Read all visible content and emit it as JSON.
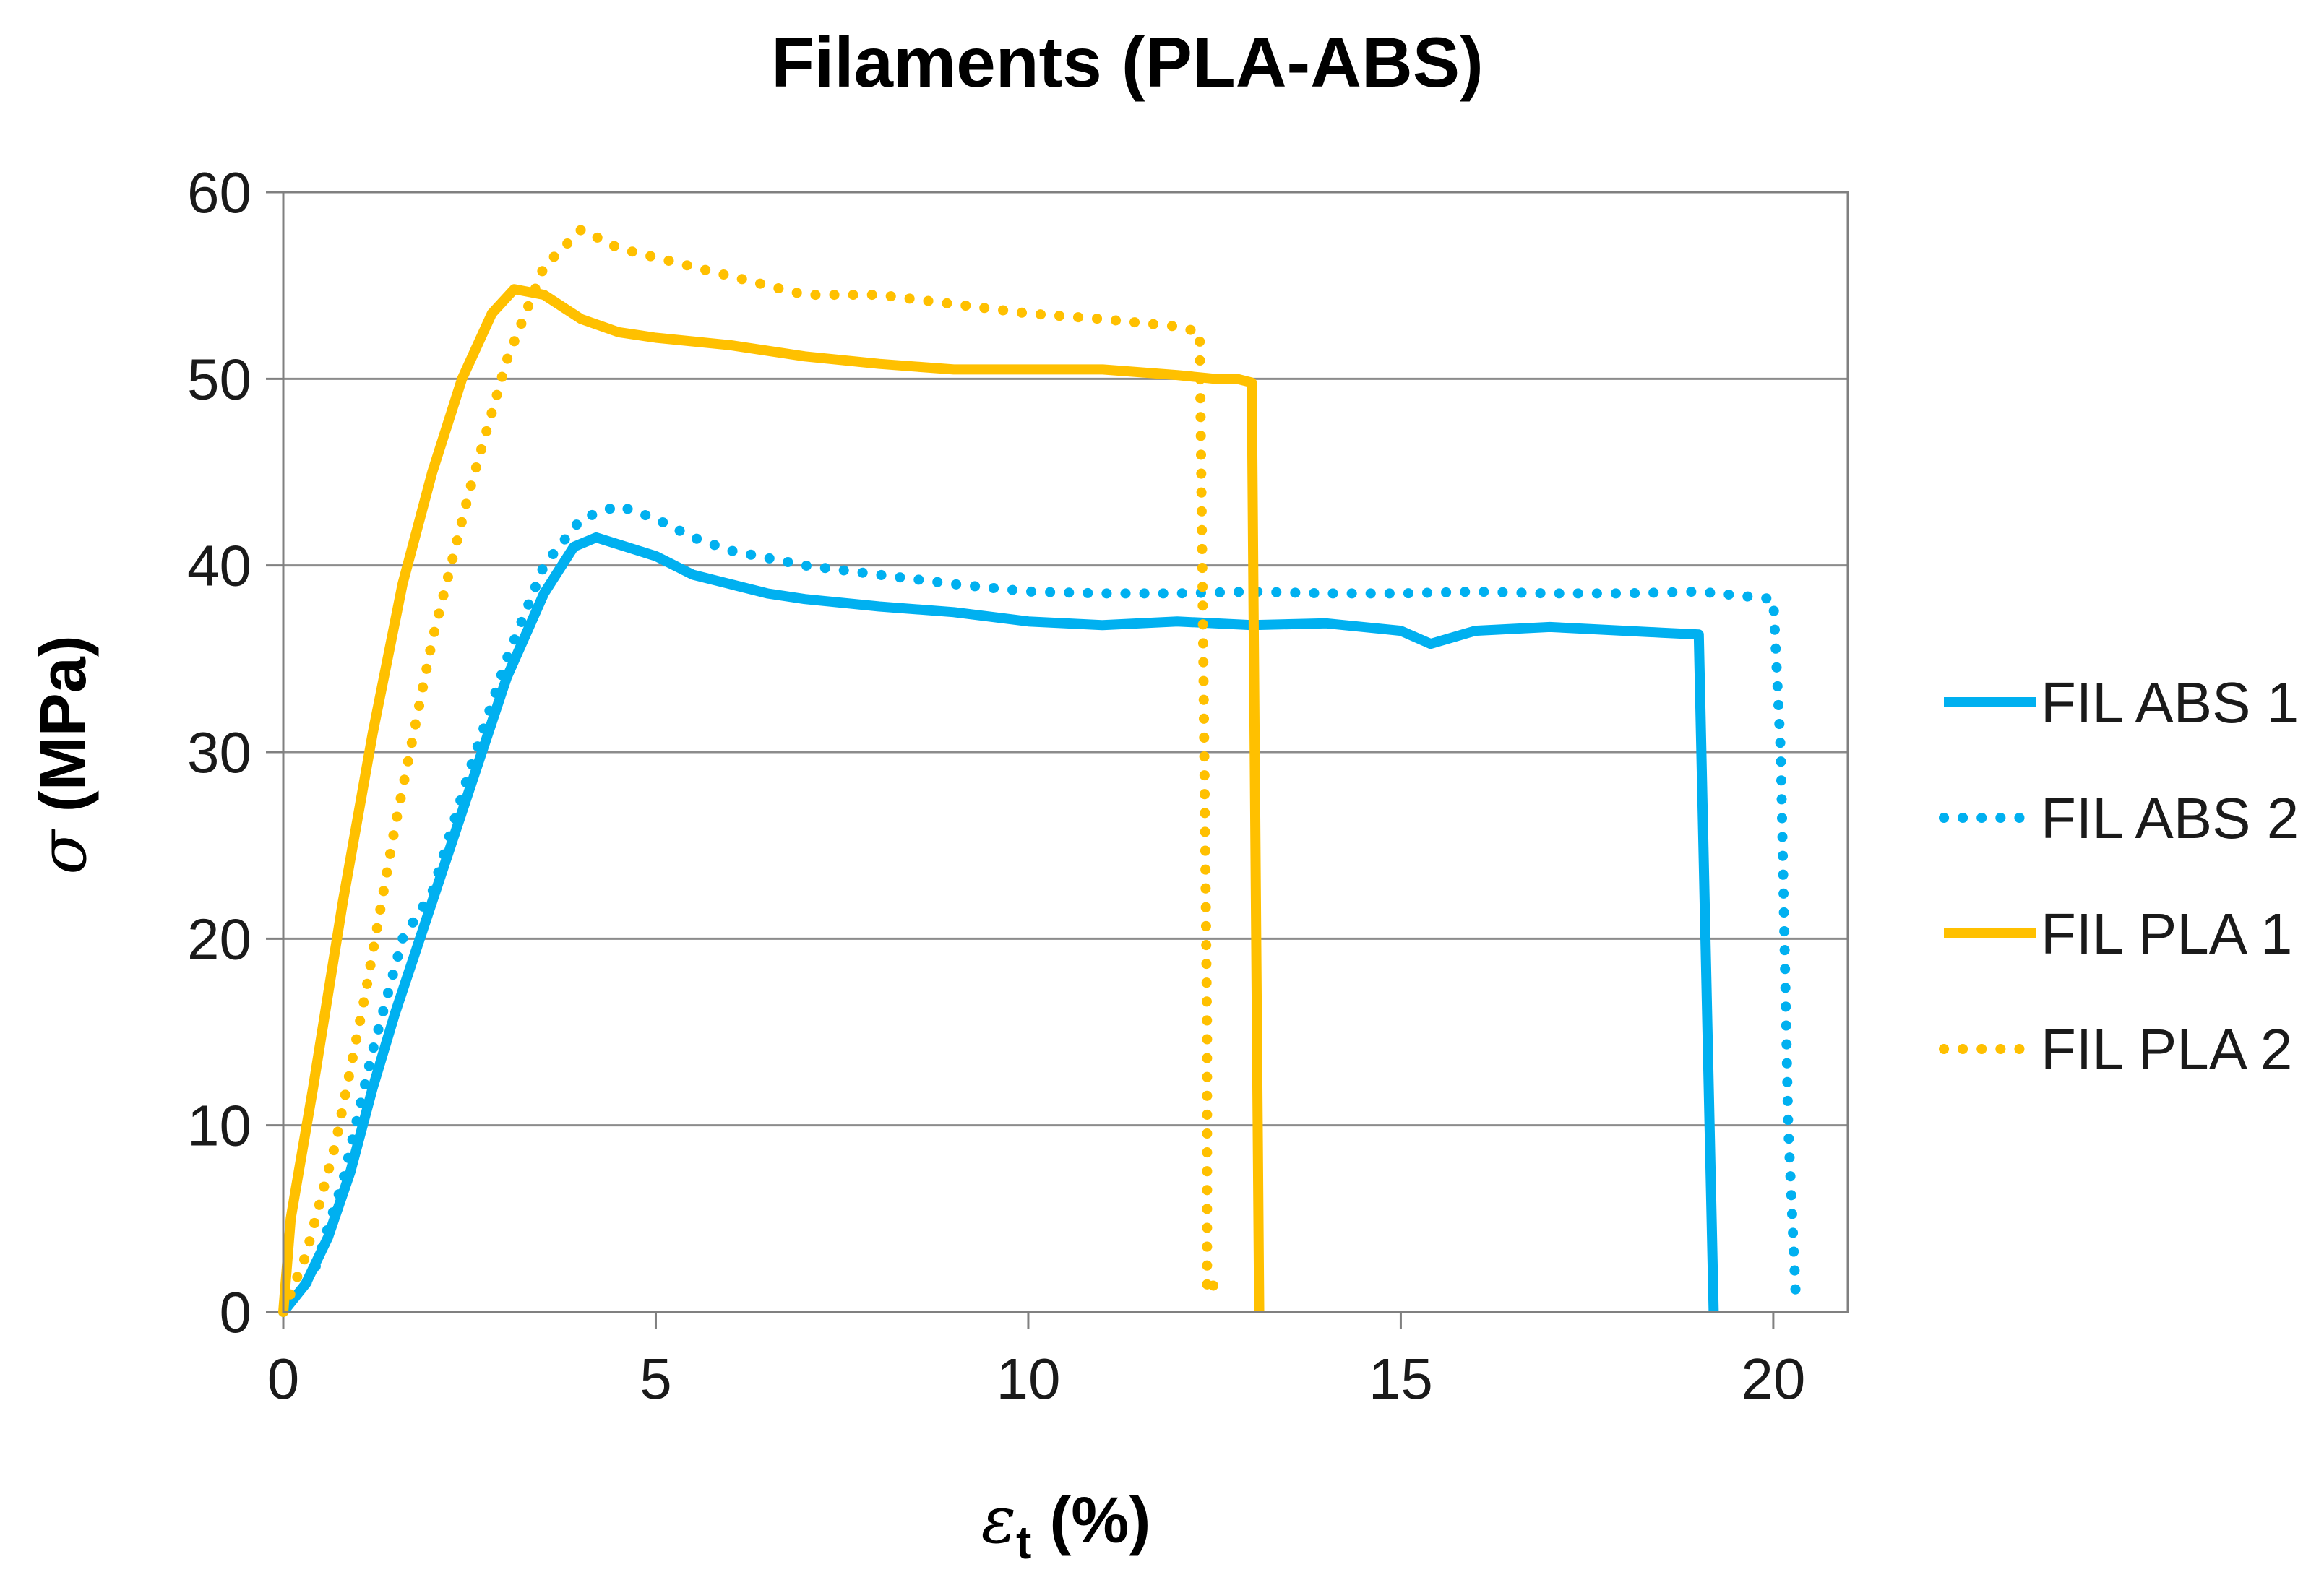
{
  "chart_data": {
    "type": "line",
    "title": "Filaments (PLA-ABS)",
    "xlabel": {
      "symbol": "ε",
      "subscript": "t",
      "unit": " (%)"
    },
    "ylabel": {
      "symbol": "σ",
      "unit": " (MPa)"
    },
    "xlim": [
      0,
      21
    ],
    "ylim": [
      0,
      60
    ],
    "xticks": [
      "0",
      "5",
      "10",
      "15",
      "20"
    ],
    "yticks": [
      "0",
      "10",
      "20",
      "30",
      "40",
      "50",
      "60"
    ],
    "grid": "horizontal",
    "legend_position": "right",
    "series": [
      {
        "name": "FIL ABS 1",
        "color": "#00B0F0",
        "dash": "solid",
        "points": [
          [
            0,
            0
          ],
          [
            0.3,
            1.5
          ],
          [
            0.6,
            4
          ],
          [
            0.9,
            7.5
          ],
          [
            1.2,
            12
          ],
          [
            1.5,
            16
          ],
          [
            2.0,
            22
          ],
          [
            2.5,
            28
          ],
          [
            3.0,
            34
          ],
          [
            3.5,
            38.5
          ],
          [
            3.9,
            41
          ],
          [
            4.2,
            41.5
          ],
          [
            4.6,
            41
          ],
          [
            5.0,
            40.5
          ],
          [
            5.5,
            39.5
          ],
          [
            6.0,
            39
          ],
          [
            6.5,
            38.5
          ],
          [
            7.0,
            38.2
          ],
          [
            8.0,
            37.8
          ],
          [
            9.0,
            37.5
          ],
          [
            10.0,
            37
          ],
          [
            11.0,
            36.8
          ],
          [
            12.0,
            37
          ],
          [
            13.0,
            36.8
          ],
          [
            14.0,
            36.9
          ],
          [
            15.0,
            36.5
          ],
          [
            15.4,
            35.8
          ],
          [
            16.0,
            36.5
          ],
          [
            17.0,
            36.7
          ],
          [
            18.0,
            36.5
          ],
          [
            18.5,
            36.4
          ],
          [
            19.0,
            36.3
          ],
          [
            19.2,
            0
          ]
        ]
      },
      {
        "name": "FIL ABS 2",
        "color": "#00B0F0",
        "dash": "dotted",
        "points": [
          [
            0,
            0
          ],
          [
            0.4,
            2
          ],
          [
            0.8,
            7
          ],
          [
            1.2,
            14
          ],
          [
            1.6,
            20
          ],
          [
            2.0,
            22.5
          ],
          [
            2.5,
            29
          ],
          [
            3.0,
            35
          ],
          [
            3.5,
            40
          ],
          [
            4.0,
            42.5
          ],
          [
            4.5,
            43.2
          ],
          [
            5.0,
            42.5
          ],
          [
            5.5,
            41.5
          ],
          [
            6.0,
            40.8
          ],
          [
            7.0,
            40
          ],
          [
            8.0,
            39.5
          ],
          [
            9.0,
            39
          ],
          [
            10.0,
            38.6
          ],
          [
            11.0,
            38.5
          ],
          [
            12.0,
            38.5
          ],
          [
            13.0,
            38.6
          ],
          [
            14.0,
            38.5
          ],
          [
            15.0,
            38.5
          ],
          [
            16.0,
            38.6
          ],
          [
            17.0,
            38.5
          ],
          [
            18.0,
            38.5
          ],
          [
            19.0,
            38.6
          ],
          [
            20.0,
            38.2
          ],
          [
            20.1,
            30
          ],
          [
            20.2,
            10
          ],
          [
            20.3,
            1
          ]
        ]
      },
      {
        "name": "FIL PLA 1",
        "color": "#FFC000",
        "dash": "solid",
        "points": [
          [
            0,
            0
          ],
          [
            0.1,
            5
          ],
          [
            0.4,
            12
          ],
          [
            0.8,
            22
          ],
          [
            1.2,
            31
          ],
          [
            1.6,
            39
          ],
          [
            2.0,
            45
          ],
          [
            2.4,
            50
          ],
          [
            2.8,
            53.5
          ],
          [
            3.1,
            54.8
          ],
          [
            3.5,
            54.5
          ],
          [
            4.0,
            53.2
          ],
          [
            4.5,
            52.5
          ],
          [
            5.0,
            52.2
          ],
          [
            6.0,
            51.8
          ],
          [
            7.0,
            51.2
          ],
          [
            8.0,
            50.8
          ],
          [
            9.0,
            50.5
          ],
          [
            10.0,
            50.5
          ],
          [
            11.0,
            50.5
          ],
          [
            12.0,
            50.2
          ],
          [
            12.5,
            50
          ],
          [
            12.8,
            50
          ],
          [
            13.0,
            49.8
          ],
          [
            13.1,
            0
          ]
        ]
      },
      {
        "name": "FIL PLA 2",
        "color": "#FFC000",
        "dash": "dotted",
        "points": [
          [
            0,
            0
          ],
          [
            0.3,
            3
          ],
          [
            0.7,
            9
          ],
          [
            1.1,
            17
          ],
          [
            1.5,
            26
          ],
          [
            2.0,
            36
          ],
          [
            2.5,
            44
          ],
          [
            3.0,
            51
          ],
          [
            3.5,
            56
          ],
          [
            4.0,
            58
          ],
          [
            4.5,
            57
          ],
          [
            5.0,
            56.5
          ],
          [
            6.0,
            55.5
          ],
          [
            7.0,
            54.5
          ],
          [
            8.0,
            54.5
          ],
          [
            9.0,
            54
          ],
          [
            10.0,
            53.5
          ],
          [
            11.0,
            53.2
          ],
          [
            12.0,
            52.8
          ],
          [
            12.3,
            52.5
          ],
          [
            12.35,
            35
          ],
          [
            12.4,
            15
          ],
          [
            12.4,
            1
          ],
          [
            12.5,
            1.5
          ],
          [
            12.55,
            1.2
          ]
        ]
      }
    ]
  }
}
